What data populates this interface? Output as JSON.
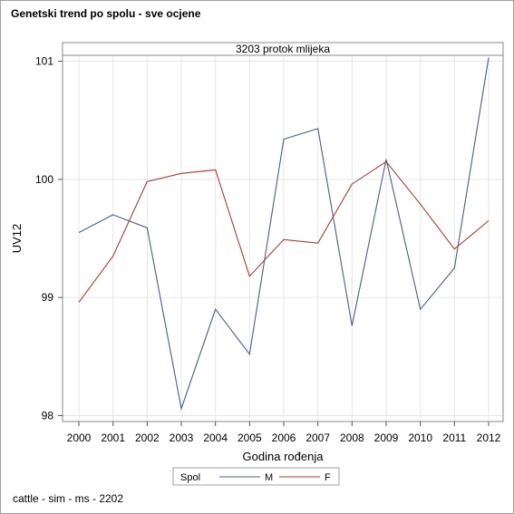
{
  "title": "Genetski trend po spolu - sve ocjene",
  "footnote": "cattle - sim - ms - 2202",
  "colors": {
    "M": "#4a5a8f",
    "F": "#a83a2e",
    "grid": "#e6e6e6",
    "axis": "#888888"
  },
  "chart_data": {
    "type": "line",
    "panel_label": "3203 protok mlijeka",
    "xlabel": "Godina rođenja",
    "ylabel": "UV12",
    "x": [
      "2000",
      "2001",
      "2002",
      "2003",
      "2004",
      "2005",
      "2006",
      "2007",
      "2008",
      "2009",
      "2010",
      "2011",
      "2012"
    ],
    "yticks": [
      "98",
      "99",
      "100",
      "101"
    ],
    "ylim": [
      97.95,
      101.05
    ],
    "grid": true,
    "legend": {
      "title": "Spol",
      "position": "bottom-center"
    },
    "series": [
      {
        "name": "M",
        "values": [
          99.55,
          99.7,
          99.59,
          98.06,
          98.9,
          98.52,
          100.34,
          100.43,
          98.76,
          100.17,
          98.9,
          99.25,
          101.03
        ]
      },
      {
        "name": "F",
        "values": [
          98.96,
          99.35,
          99.98,
          100.05,
          100.08,
          99.18,
          99.49,
          99.46,
          99.96,
          100.15,
          99.79,
          99.41,
          99.65
        ]
      }
    ]
  }
}
